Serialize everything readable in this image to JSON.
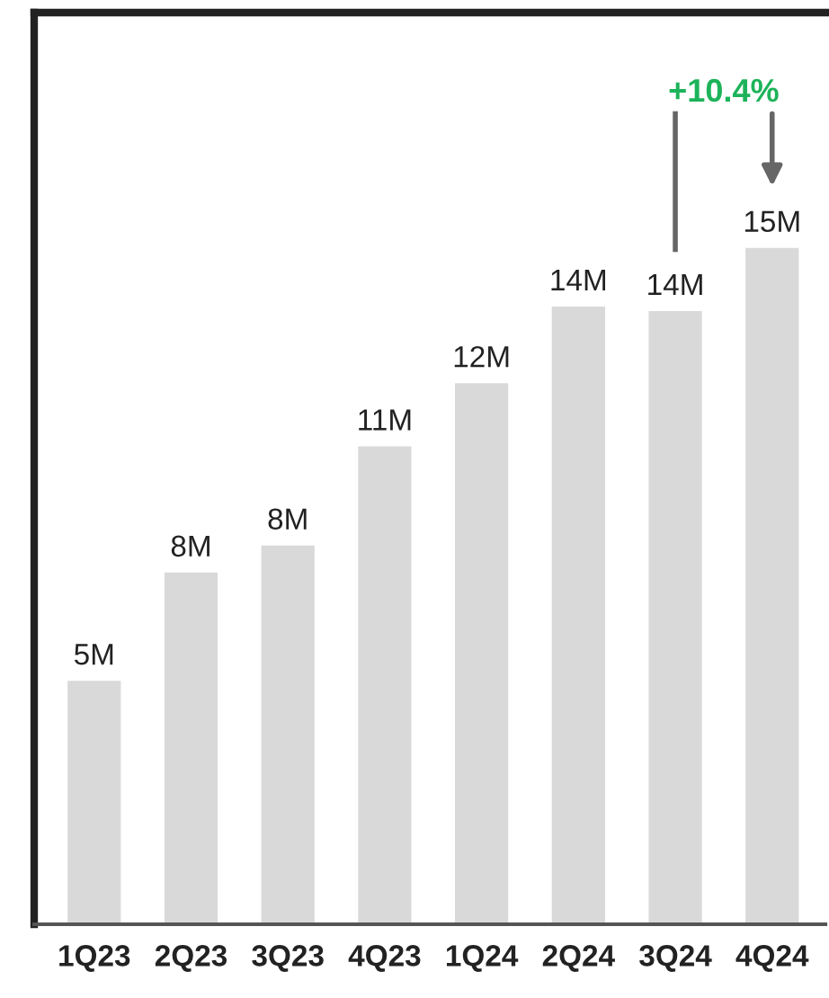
{
  "chart_data": {
    "type": "bar",
    "categories": [
      "1Q23",
      "2Q23",
      "3Q23",
      "4Q23",
      "1Q24",
      "2Q24",
      "3Q24",
      "4Q24"
    ],
    "values": [
      5.4,
      7.8,
      8.4,
      10.6,
      12.0,
      13.7,
      13.6,
      15.0
    ],
    "value_labels": [
      "5M",
      "8M",
      "8M",
      "11M",
      "12M",
      "14M",
      "14M",
      "15M"
    ],
    "color": "#d9d9d9",
    "annotations": [
      "+10.4%"
    ]
  }
}
